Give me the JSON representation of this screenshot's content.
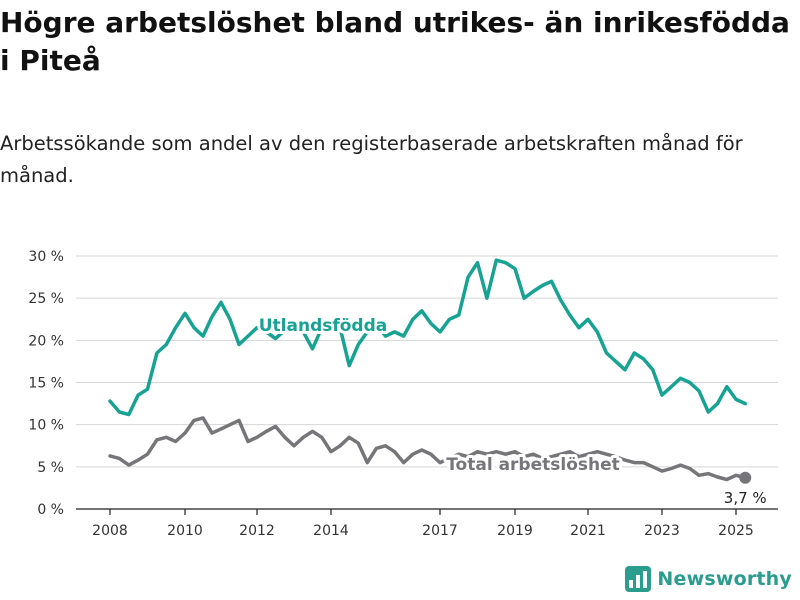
{
  "title": "Högre arbetslöshet bland utrikes- än inrikesfödda i Piteå",
  "subtitle": "Arbetssökande som andel av den registerbaserade arbetskraften månad för månad.",
  "brand": {
    "name": "Newsworthy",
    "icon": "bar-chart-logo-icon"
  },
  "colors": {
    "foreign_born": "#17a394",
    "total": "#76757a",
    "grid": "#d6d6d6",
    "brand": "#2a9d8f"
  },
  "chart_data": {
    "type": "line",
    "ylim": [
      0,
      30
    ],
    "y_ticks": [
      "0 %",
      "5 %",
      "10 %",
      "15 %",
      "20 %",
      "25 %",
      "30 %"
    ],
    "x_ticks": [
      "2008",
      "2010",
      "2012",
      "2014",
      "2017",
      "2019",
      "2021",
      "2023",
      "2025"
    ],
    "grid": "horizontal",
    "series": [
      {
        "name": "Utlandsfödda",
        "x": [
          "2008-01",
          "2008-04",
          "2008-07",
          "2008-10",
          "2009-01",
          "2009-04",
          "2009-07",
          "2009-10",
          "2010-01",
          "2010-04",
          "2010-07",
          "2010-10",
          "2011-01",
          "2011-04",
          "2011-07",
          "2011-10",
          "2012-01",
          "2012-04",
          "2012-07",
          "2012-10",
          "2013-01",
          "2013-04",
          "2013-07",
          "2013-10",
          "2014-01",
          "2014-04",
          "2014-07",
          "2014-10",
          "2015-01",
          "2015-04",
          "2015-07",
          "2015-10",
          "2016-01",
          "2016-04",
          "2016-07",
          "2016-10",
          "2017-01",
          "2017-04",
          "2017-07",
          "2017-10",
          "2018-01",
          "2018-04",
          "2018-07",
          "2018-10",
          "2019-01",
          "2019-04",
          "2019-07",
          "2019-10",
          "2020-01",
          "2020-04",
          "2020-07",
          "2020-10",
          "2021-01",
          "2021-04",
          "2021-07",
          "2021-10",
          "2022-01",
          "2022-04",
          "2022-07",
          "2022-10",
          "2023-01",
          "2023-04",
          "2023-07",
          "2023-10",
          "2024-01",
          "2024-04",
          "2024-07",
          "2024-10",
          "2025-01",
          "2025-04"
        ],
        "values": [
          12.8,
          11.5,
          11.2,
          13.5,
          14.2,
          18.5,
          19.5,
          21.5,
          23.2,
          21.5,
          20.5,
          22.8,
          24.5,
          22.5,
          19.5,
          20.5,
          21.5,
          21.0,
          20.2,
          21.2,
          21.5,
          21.0,
          19.0,
          21.5,
          22.0,
          21.5,
          17.0,
          19.5,
          21.0,
          22.0,
          20.5,
          21.0,
          20.5,
          22.5,
          23.5,
          22.0,
          21.0,
          22.5,
          23.0,
          27.5,
          29.2,
          25.0,
          29.5,
          29.2,
          28.5,
          25.0,
          25.8,
          26.5,
          27.0,
          24.8,
          23.0,
          21.5,
          22.5,
          21.0,
          18.5,
          17.5,
          16.5,
          18.5,
          17.8,
          16.5,
          13.5,
          14.5,
          15.5,
          15.0,
          14.0,
          11.5,
          12.5,
          14.5,
          13.0,
          12.5
        ]
      },
      {
        "name": "Total arbetslöshet",
        "x": [
          "2008-01",
          "2008-04",
          "2008-07",
          "2008-10",
          "2009-01",
          "2009-04",
          "2009-07",
          "2009-10",
          "2010-01",
          "2010-04",
          "2010-07",
          "2010-10",
          "2011-01",
          "2011-04",
          "2011-07",
          "2011-10",
          "2012-01",
          "2012-04",
          "2012-07",
          "2012-10",
          "2013-01",
          "2013-04",
          "2013-07",
          "2013-10",
          "2014-01",
          "2014-04",
          "2014-07",
          "2014-10",
          "2015-01",
          "2015-04",
          "2015-07",
          "2015-10",
          "2016-01",
          "2016-04",
          "2016-07",
          "2016-10",
          "2017-01",
          "2017-04",
          "2017-07",
          "2017-10",
          "2018-01",
          "2018-04",
          "2018-07",
          "2018-10",
          "2019-01",
          "2019-04",
          "2019-07",
          "2019-10",
          "2020-01",
          "2020-04",
          "2020-07",
          "2020-10",
          "2021-01",
          "2021-04",
          "2021-07",
          "2021-10",
          "2022-01",
          "2022-04",
          "2022-07",
          "2022-10",
          "2023-01",
          "2023-04",
          "2023-07",
          "2023-10",
          "2024-01",
          "2024-04",
          "2024-07",
          "2024-10",
          "2025-01",
          "2025-04"
        ],
        "values": [
          6.3,
          6.0,
          5.2,
          5.8,
          6.5,
          8.2,
          8.5,
          8.0,
          9.0,
          10.5,
          10.8,
          9.0,
          9.5,
          10.0,
          10.5,
          8.0,
          8.5,
          9.2,
          9.8,
          8.5,
          7.5,
          8.5,
          9.2,
          8.5,
          6.8,
          7.5,
          8.5,
          7.8,
          5.5,
          7.2,
          7.5,
          6.8,
          5.5,
          6.5,
          7.0,
          6.5,
          5.5,
          6.0,
          6.5,
          6.2,
          6.8,
          6.5,
          6.8,
          6.5,
          6.8,
          6.2,
          6.5,
          6.0,
          6.2,
          6.5,
          6.8,
          6.2,
          6.5,
          6.8,
          6.5,
          6.2,
          5.8,
          5.5,
          5.5,
          5.0,
          4.5,
          4.8,
          5.2,
          4.8,
          4.0,
          4.2,
          3.8,
          3.5,
          4.0,
          3.7
        ]
      }
    ],
    "annotations": [
      {
        "series": "Total arbetslöshet",
        "text": "3,7 %"
      }
    ]
  }
}
